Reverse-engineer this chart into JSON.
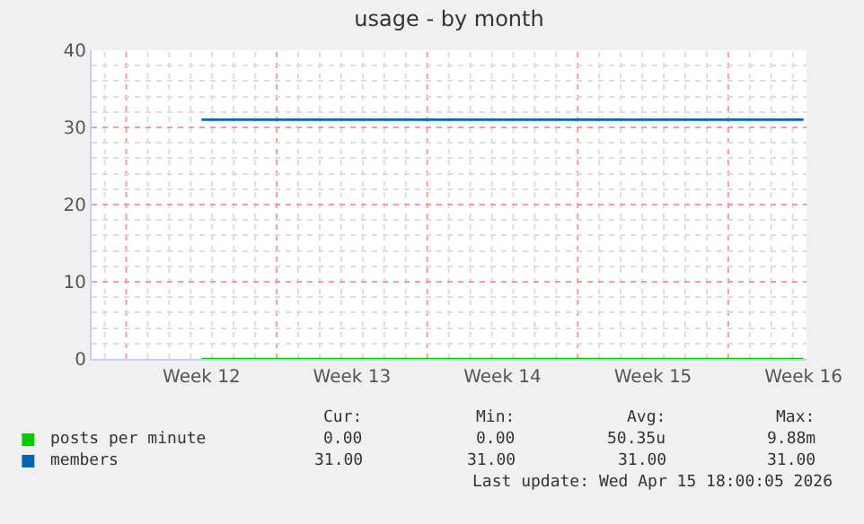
{
  "chart_data": {
    "type": "line",
    "title": "usage - by month",
    "categories": [
      "Week 12",
      "Week 13",
      "Week 14",
      "Week 15",
      "Week 16"
    ],
    "series": [
      {
        "name": "posts per minute",
        "color": "#00cc00",
        "values": [
          0,
          0,
          0,
          0,
          0
        ]
      },
      {
        "name": "members",
        "color": "#0066b3",
        "values": [
          31,
          31,
          31,
          31,
          31
        ]
      }
    ],
    "ylim": [
      0,
      40
    ],
    "yticks": [
      0,
      10,
      20,
      30,
      40
    ],
    "grid": true,
    "legend": "bottom left",
    "marker": "none",
    "line_style": "solid",
    "annotations": [
      "Cur:",
      "Min:",
      "Avg:",
      "Max:",
      "0.00",
      "0.00",
      "50.35u",
      "9.88m",
      "31.00",
      "31.00",
      "31.00",
      "31.00",
      "Last update: Wed Apr 15 18:00:05 2026"
    ]
  }
}
